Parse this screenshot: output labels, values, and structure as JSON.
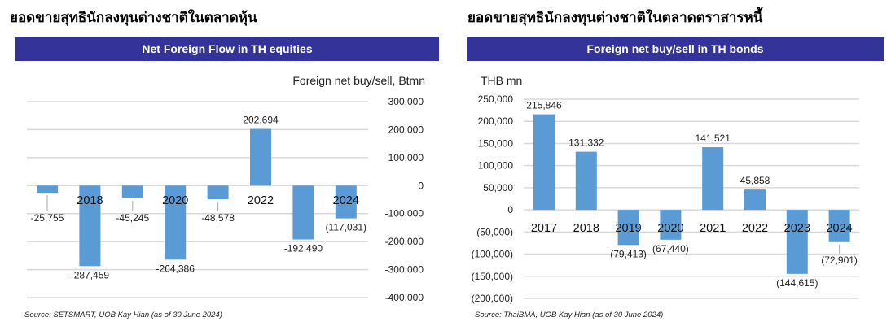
{
  "left": {
    "heading_th": "ยอดขายสุทธินักลงทุนต่างชาติในตลาดหุ้น",
    "banner": "Net Foreign Flow in TH equities",
    "source": "Source: SETSMART, UOB Kay Hian (as of 30 June  2024)"
  },
  "right": {
    "heading_th": "ยอดขายสุทธินักลงทุนต่างชาติในตลาดตราสารหนี้",
    "banner": "Foreign net buy/sell in TH bonds",
    "source": "Source: ThaiBMA, UOB Kay Hian (as of 30 June 2024)"
  },
  "chart_data": [
    {
      "type": "bar",
      "title": "Net Foreign Flow in TH equities",
      "ylabel": "Foreign net buy/sell, Btmn",
      "categories": [
        "",
        "2018",
        "",
        "2020",
        "",
        "2022",
        "",
        "2024"
      ],
      "values": [
        -25755,
        -287459,
        -45245,
        -264386,
        -48578,
        202694,
        -192490,
        -117031
      ],
      "data_labels": [
        "-25,755",
        "-287,459",
        "-45,245",
        "-264,386",
        "-48,578",
        "202,694",
        "-192,490",
        "(117,031)"
      ],
      "ylim": [
        -400000,
        300000
      ],
      "yticks": [
        300000,
        200000,
        100000,
        0,
        -100000,
        -200000,
        -300000,
        -400000
      ],
      "ytick_labels": [
        "300,000",
        "200,000",
        "100,000",
        "0",
        "-100,000",
        "-200,000",
        "-300,000",
        "-400,000"
      ],
      "yaxis_side": "right",
      "grid": true,
      "bar_color": "#5b9bd5"
    },
    {
      "type": "bar",
      "title": "Foreign net buy/sell in TH bonds",
      "ylabel": "THB mn",
      "categories": [
        "2017",
        "2018",
        "2019",
        "2020",
        "2021",
        "2022",
        "2023",
        "2024"
      ],
      "values": [
        215846,
        131332,
        -79413,
        -67440,
        141521,
        45858,
        -144615,
        -72901
      ],
      "data_labels": [
        "215,846",
        "131,332",
        "(79,413)",
        "(67,440)",
        "141,521",
        "45,858",
        "(144,615)",
        "(72,901)"
      ],
      "ylim": [
        -200000,
        250000
      ],
      "yticks": [
        250000,
        200000,
        150000,
        100000,
        50000,
        0,
        -50000,
        -100000,
        -150000,
        -200000
      ],
      "ytick_labels": [
        "250,000",
        "200,000",
        "150,000",
        "100,000",
        "50,000",
        "0",
        "(50,000)",
        "(100,000)",
        "(150,000)",
        "(200,000)"
      ],
      "yaxis_side": "left",
      "grid": true,
      "bar_color": "#5b9bd5"
    }
  ]
}
